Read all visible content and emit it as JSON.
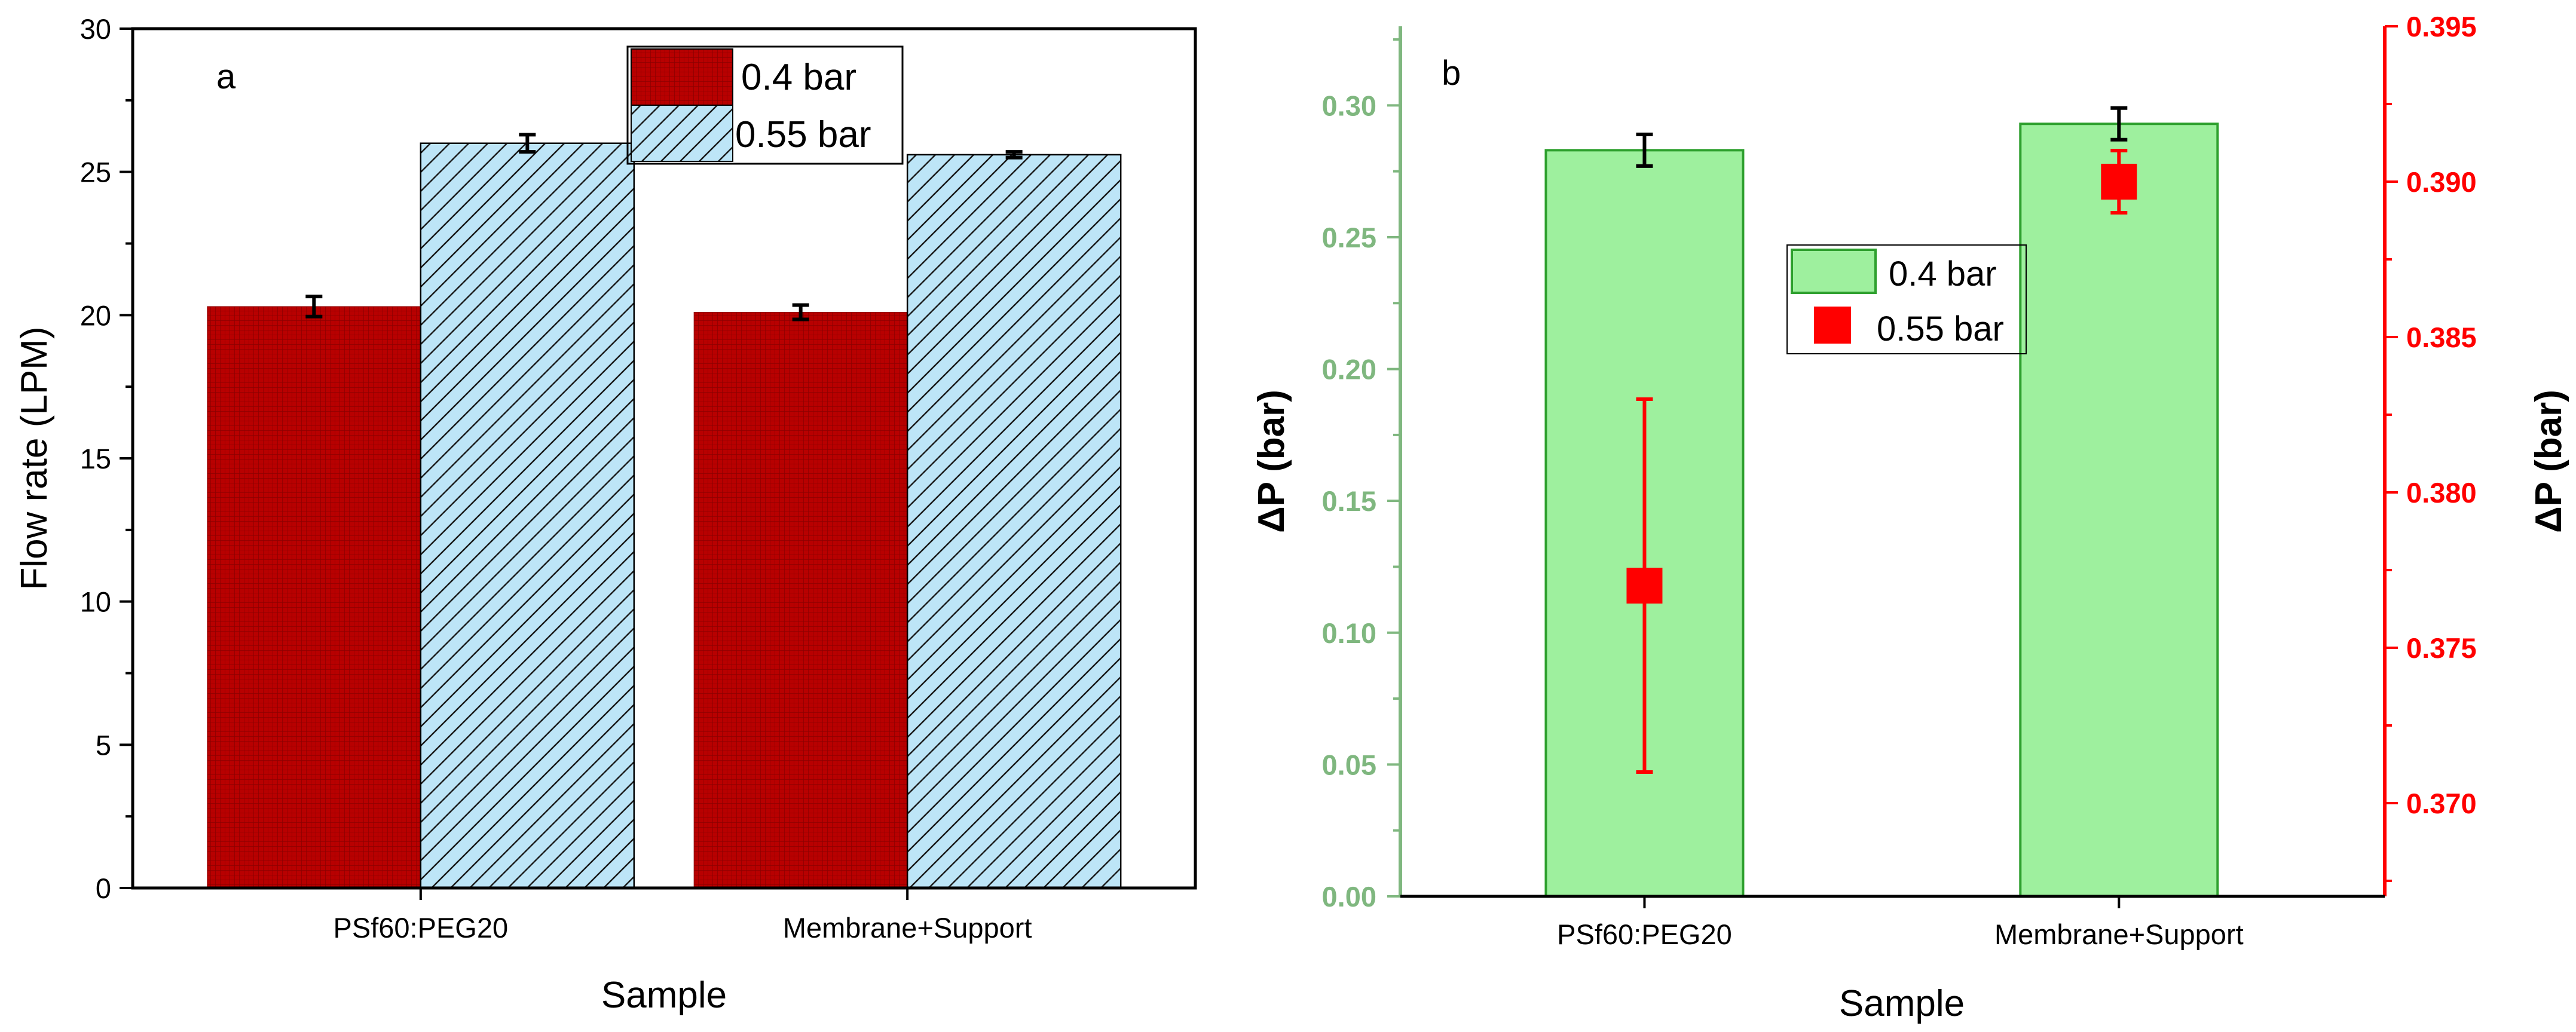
{
  "chart_data": [
    {
      "panel": "a",
      "type": "bar",
      "categories": [
        "PSf60:PEG20",
        "Membrane+Support"
      ],
      "series": [
        {
          "name": "0.4 bar",
          "values": [
            20.3,
            20.1
          ],
          "errors": [
            0.35,
            0.25
          ],
          "color": "#c00000"
        },
        {
          "name": "0.55 bar",
          "values": [
            26.0,
            25.6
          ],
          "errors": [
            0.3,
            0.1
          ],
          "color": "#bde5f7"
        }
      ],
      "xlabel": "Sample",
      "ylabel": "Flow rate (LPM)",
      "ylim": [
        0,
        30
      ],
      "yticks": [
        "0",
        "5",
        "10",
        "15",
        "20",
        "25",
        "30"
      ],
      "legend": "top-center"
    },
    {
      "panel": "b",
      "type": "bar",
      "categories": [
        "PSf60:PEG20",
        "Membrane+Support"
      ],
      "series": [
        {
          "name": "0.4 bar",
          "axis": "left",
          "kind": "bar",
          "values": [
            0.283,
            0.293
          ],
          "errors": [
            0.006,
            0.006
          ],
          "color": "#9ef09e"
        },
        {
          "name": "0.55 bar",
          "axis": "right",
          "kind": "scatter",
          "values": [
            0.377,
            0.39
          ],
          "errors": [
            0.006,
            0.001
          ],
          "color": "#ff0000"
        }
      ],
      "xlabel": "Sample",
      "ylabel_left": "ΔP (bar)",
      "ylabel_right": "ΔP (bar)",
      "ylim_left": [
        0,
        0.33
      ],
      "ylim_right": [
        0.367,
        0.395
      ],
      "yticks_left": [
        "0.00",
        "0.05",
        "0.10",
        "0.15",
        "0.20",
        "0.25",
        "0.30"
      ],
      "yticks_right": [
        "0.370",
        "0.375",
        "0.380",
        "0.385",
        "0.390",
        "0.395"
      ],
      "axis_color_left": "#7fb77f",
      "axis_color_right": "#ff0000",
      "legend": "center"
    }
  ]
}
